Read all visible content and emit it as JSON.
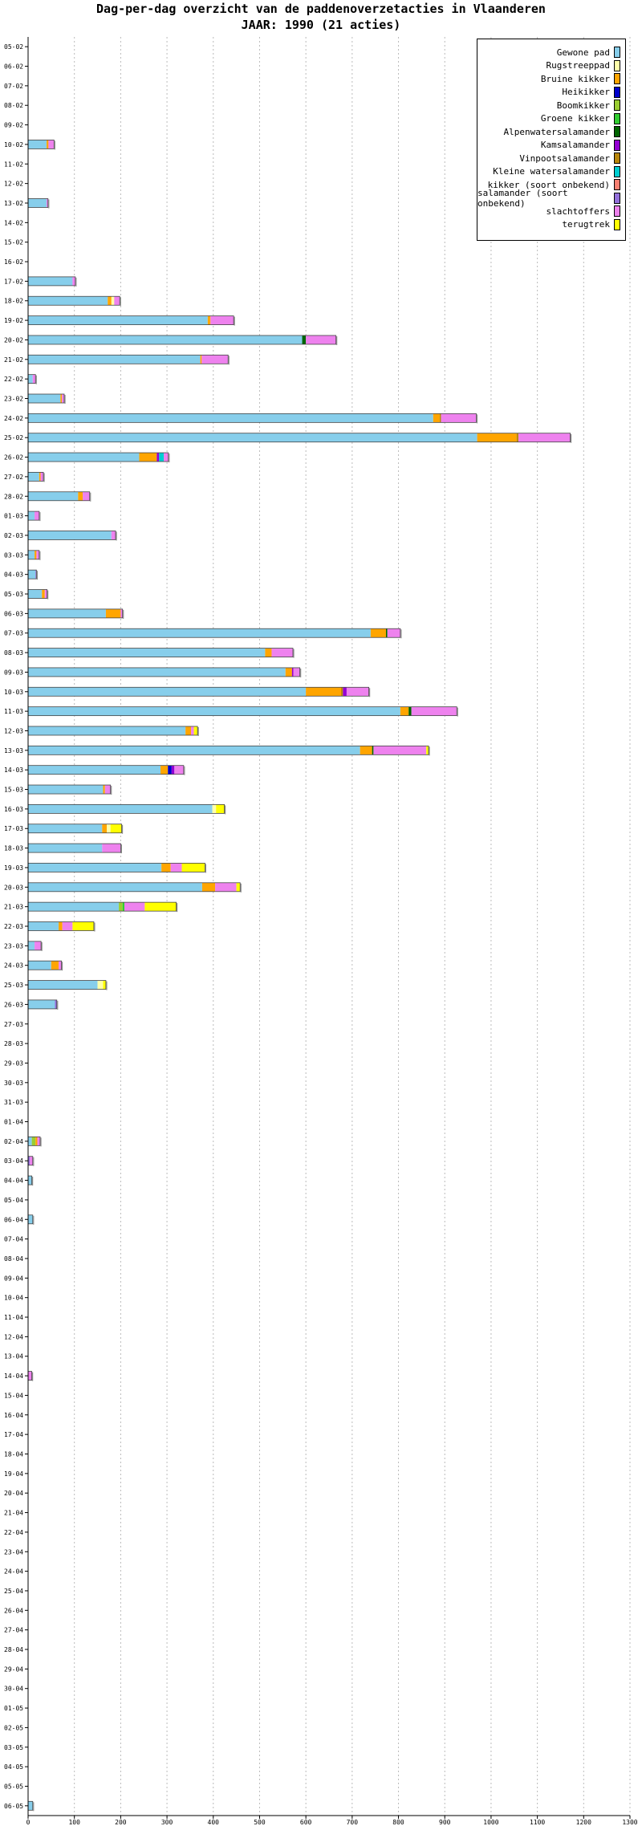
{
  "title": "Dag-per-dag overzicht van de paddenoverzetacties in Vlaanderen",
  "subtitle": "JAAR: 1990 (21 acties)",
  "chart_data": {
    "type": "bar",
    "orientation": "horizontal",
    "stacked": true,
    "title": "Dag-per-dag overzicht van de paddenoverzetacties in Vlaanderen",
    "subtitle": "JAAR: 1990 (21 acties)",
    "xlim": [
      0,
      1300
    ],
    "xticks": [
      0,
      100,
      200,
      300,
      400,
      500,
      600,
      700,
      800,
      900,
      1000,
      1100,
      1200,
      1300
    ],
    "grid": "vertical dotted",
    "legend_position": "top-right",
    "series": [
      {
        "name": "Gewone pad",
        "color": "#87ceeb"
      },
      {
        "name": "Rugstreeppad",
        "color": "#ffffaa"
      },
      {
        "name": "Bruine kikker",
        "color": "#ffa500"
      },
      {
        "name": "Heikikker",
        "color": "#0000cd"
      },
      {
        "name": "Boomkikker",
        "color": "#9acd32"
      },
      {
        "name": "Groene kikker",
        "color": "#32cd32"
      },
      {
        "name": "Alpenwatersalamander",
        "color": "#006400"
      },
      {
        "name": "Kamsalamander",
        "color": "#9400d3"
      },
      {
        "name": "Vinpootsalamander",
        "color": "#b8860b"
      },
      {
        "name": "Kleine watersalamander",
        "color": "#00ced1"
      },
      {
        "name": "kikker (soort onbekend)",
        "color": "#fa8072"
      },
      {
        "name": "salamander (soort onbekend)",
        "color": "#9370db"
      },
      {
        "name": "slachtoffers",
        "color": "#ee82ee"
      },
      {
        "name": "terugtrek",
        "color": "#ffff00"
      }
    ],
    "categories": [
      "05-02",
      "06-02",
      "07-02",
      "08-02",
      "09-02",
      "10-02",
      "11-02",
      "12-02",
      "13-02",
      "14-02",
      "15-02",
      "16-02",
      "17-02",
      "18-02",
      "19-02",
      "20-02",
      "21-02",
      "22-02",
      "23-02",
      "24-02",
      "25-02",
      "26-02",
      "27-02",
      "28-02",
      "01-03",
      "02-03",
      "03-03",
      "04-03",
      "05-03",
      "06-03",
      "07-03",
      "08-03",
      "09-03",
      "10-03",
      "11-03",
      "12-03",
      "13-03",
      "14-03",
      "15-03",
      "16-03",
      "17-03",
      "18-03",
      "19-03",
      "20-03",
      "21-03",
      "22-03",
      "23-03",
      "24-03",
      "25-03",
      "26-03",
      "27-03",
      "28-03",
      "29-03",
      "30-03",
      "31-03",
      "01-04",
      "02-04",
      "03-04",
      "04-04",
      "05-04",
      "06-04",
      "07-04",
      "08-04",
      "09-04",
      "10-04",
      "11-04",
      "12-04",
      "13-04",
      "14-04",
      "15-04",
      "16-04",
      "17-04",
      "18-04",
      "19-04",
      "20-04",
      "21-04",
      "22-04",
      "23-04",
      "24-04",
      "25-04",
      "26-04",
      "27-04",
      "28-04",
      "29-04",
      "30-04",
      "01-05",
      "02-05",
      "03-05",
      "04-05",
      "05-05",
      "06-05"
    ],
    "rows": [
      [],
      [],
      [],
      [],
      [],
      [
        [
          "Gewone pad",
          40
        ],
        [
          "Bruine kikker",
          4
        ],
        [
          "slachtoffers",
          12
        ]
      ],
      [],
      [],
      [
        [
          "Gewone pad",
          40
        ],
        [
          "slachtoffers",
          3
        ]
      ],
      [],
      [],
      [],
      [
        [
          "Gewone pad",
          96
        ],
        [
          "slachtoffers",
          6
        ]
      ],
      [
        [
          "Gewone pad",
          172
        ],
        [
          "Bruine kikker",
          8
        ],
        [
          "Rugstreeppad",
          6
        ],
        [
          "slachtoffers",
          12
        ]
      ],
      [
        [
          "Gewone pad",
          388
        ],
        [
          "Bruine kikker",
          6
        ],
        [
          "slachtoffers",
          50
        ]
      ],
      [
        [
          "Gewone pad",
          592
        ],
        [
          "Alpenwatersalamander",
          8
        ],
        [
          "slachtoffers",
          65
        ]
      ],
      [
        [
          "Gewone pad",
          372
        ],
        [
          "Bruine kikker",
          3
        ],
        [
          "slachtoffers",
          57
        ]
      ],
      [
        [
          "Gewone pad",
          10
        ],
        [
          "slachtoffers",
          6
        ]
      ],
      [
        [
          "Gewone pad",
          70
        ],
        [
          "Bruine kikker",
          3
        ],
        [
          "slachtoffers",
          5
        ]
      ],
      [
        [
          "Gewone pad",
          875
        ],
        [
          "Bruine kikker",
          14
        ],
        [
          "Vinpootsalamander",
          3
        ],
        [
          "slachtoffers",
          76
        ]
      ],
      [
        [
          "Gewone pad",
          970
        ],
        [
          "Bruine kikker",
          85
        ],
        [
          "Vinpootsalamander",
          4
        ],
        [
          "slachtoffers",
          112
        ]
      ],
      [
        [
          "Gewone pad",
          240
        ],
        [
          "Bruine kikker",
          38
        ],
        [
          "Kamsalamander",
          5
        ],
        [
          "Kleine watersalamander",
          10
        ],
        [
          "slachtoffers",
          10
        ]
      ],
      [
        [
          "Gewone pad",
          24
        ],
        [
          "Bruine kikker",
          3
        ],
        [
          "slachtoffers",
          6
        ]
      ],
      [
        [
          "Gewone pad",
          108
        ],
        [
          "Bruine kikker",
          10
        ],
        [
          "slachtoffers",
          15
        ]
      ],
      [
        [
          "Gewone pad",
          14
        ],
        [
          "slachtoffers",
          10
        ]
      ],
      [
        [
          "Gewone pad",
          180
        ],
        [
          "slachtoffers",
          9
        ]
      ],
      [
        [
          "Gewone pad",
          14
        ],
        [
          "Bruine kikker",
          4
        ],
        [
          "slachtoffers",
          6
        ]
      ],
      [
        [
          "Gewone pad",
          16
        ],
        [
          "salamander (soort onbekend)",
          2
        ]
      ],
      [
        [
          "Gewone pad",
          30
        ],
        [
          "Bruine kikker",
          6
        ],
        [
          "slachtoffers",
          5
        ]
      ],
      [
        [
          "Gewone pad",
          168
        ],
        [
          "Bruine kikker",
          32
        ],
        [
          "slachtoffers",
          4
        ]
      ],
      [
        [
          "Gewone pad",
          740
        ],
        [
          "Bruine kikker",
          33
        ],
        [
          "Alpenwatersalamander",
          3
        ],
        [
          "slachtoffers",
          28
        ]
      ],
      [
        [
          "Gewone pad",
          512
        ],
        [
          "Bruine kikker",
          14
        ],
        [
          "slachtoffers",
          46
        ]
      ],
      [
        [
          "Gewone pad",
          556
        ],
        [
          "Bruine kikker",
          14
        ],
        [
          "Kamsalamander",
          3
        ],
        [
          "slachtoffers",
          14
        ]
      ],
      [
        [
          "Gewone pad",
          600
        ],
        [
          "Bruine kikker",
          76
        ],
        [
          "Vinpootsalamander",
          4
        ],
        [
          "Kamsalamander",
          8
        ],
        [
          "slachtoffers",
          48
        ]
      ],
      [
        [
          "Gewone pad",
          804
        ],
        [
          "Bruine kikker",
          18
        ],
        [
          "Alpenwatersalamander",
          6
        ],
        [
          "slachtoffers",
          98
        ]
      ],
      [
        [
          "Gewone pad",
          340
        ],
        [
          "Bruine kikker",
          12
        ],
        [
          "slachtoffers",
          6
        ],
        [
          "terugtrek",
          8
        ]
      ],
      [
        [
          "Gewone pad",
          717
        ],
        [
          "Bruine kikker",
          26
        ],
        [
          "Alpenwatersalamander",
          3
        ],
        [
          "slachtoffers",
          114
        ],
        [
          "terugtrek",
          5
        ]
      ],
      [
        [
          "Gewone pad",
          286
        ],
        [
          "Bruine kikker",
          16
        ],
        [
          "Heikikker",
          8
        ],
        [
          "Kamsalamander",
          6
        ],
        [
          "slachtoffers",
          20
        ]
      ],
      [
        [
          "Gewone pad",
          162
        ],
        [
          "Bruine kikker",
          4
        ],
        [
          "slachtoffers",
          12
        ]
      ],
      [
        [
          "Gewone pad",
          398
        ],
        [
          "Rugstreeppad",
          8
        ],
        [
          "terugtrek",
          18
        ]
      ],
      [
        [
          "Gewone pad",
          160
        ],
        [
          "Bruine kikker",
          10
        ],
        [
          "Rugstreeppad",
          8
        ],
        [
          "terugtrek",
          24
        ]
      ],
      [
        [
          "Gewone pad",
          160
        ],
        [
          "slachtoffers",
          40
        ]
      ],
      [
        [
          "Gewone pad",
          288
        ],
        [
          "Bruine kikker",
          20
        ],
        [
          "slachtoffers",
          24
        ],
        [
          "terugtrek",
          50
        ]
      ],
      [
        [
          "Gewone pad",
          376
        ],
        [
          "Bruine kikker",
          28
        ],
        [
          "slachtoffers",
          46
        ],
        [
          "terugtrek",
          8
        ]
      ],
      [
        [
          "Gewone pad",
          196
        ],
        [
          "Boomkikker",
          8
        ],
        [
          "Groene kikker",
          4
        ],
        [
          "slachtoffers",
          44
        ],
        [
          "terugtrek",
          68
        ]
      ],
      [
        [
          "Gewone pad",
          66
        ],
        [
          "Bruine kikker",
          8
        ],
        [
          "slachtoffers",
          22
        ],
        [
          "terugtrek",
          46
        ]
      ],
      [
        [
          "Gewone pad",
          14
        ],
        [
          "slachtoffers",
          14
        ]
      ],
      [
        [
          "Gewone pad",
          50
        ],
        [
          "Bruine kikker",
          16
        ],
        [
          "slachtoffers",
          6
        ]
      ],
      [
        [
          "Gewone pad",
          150
        ],
        [
          "Rugstreeppad",
          12
        ],
        [
          "terugtrek",
          6
        ]
      ],
      [
        [
          "Gewone pad",
          58
        ],
        [
          "salamander (soort onbekend)",
          4
        ]
      ],
      [],
      [],
      [],
      [],
      [],
      [],
      [
        [
          "Gewone pad",
          8
        ],
        [
          "Boomkikker",
          8
        ],
        [
          "Bruine kikker",
          4
        ],
        [
          "slachtoffers",
          6
        ]
      ],
      [
        [
          "salamander (soort onbekend)",
          4
        ],
        [
          "slachtoffers",
          6
        ]
      ],
      [
        [
          "Gewone pad",
          8
        ]
      ],
      [],
      [
        [
          "Gewone pad",
          10
        ]
      ],
      [],
      [],
      [],
      [],
      [],
      [],
      [],
      [
        [
          "slachtoffers",
          8
        ]
      ],
      [],
      [],
      [],
      [],
      [],
      [],
      [],
      [],
      [],
      [],
      [],
      [],
      [],
      [],
      [],
      [],
      [],
      [],
      [],
      [],
      [],
      [
        [
          "Gewone pad",
          10
        ]
      ]
    ]
  }
}
